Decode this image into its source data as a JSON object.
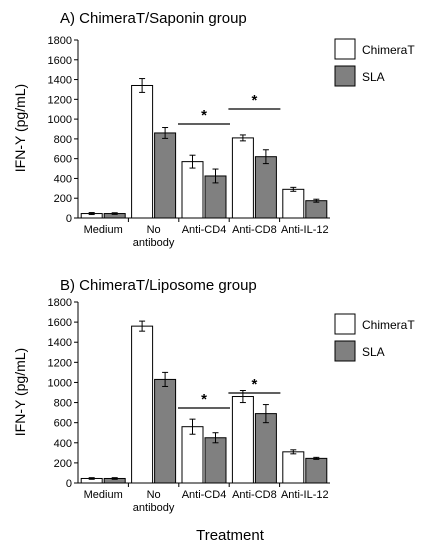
{
  "chart_data": [
    {
      "type": "bar",
      "title": "A) ChimeraT/Saponin group",
      "ylabel": "IFN-Y (pg/mL)",
      "ylim": [
        0,
        1800
      ],
      "yticks": [
        0,
        200,
        400,
        600,
        800,
        1000,
        1200,
        1400,
        1600,
        1800
      ],
      "categories": [
        "Medium",
        "No antibody",
        "Anti-CD4",
        "Anti-CD8",
        "Anti-IL-12"
      ],
      "series": [
        {
          "name": "ChimeraT",
          "color": "#ffffff",
          "values": [
            45,
            1340,
            570,
            810,
            290
          ],
          "errors": [
            10,
            70,
            65,
            30,
            20
          ]
        },
        {
          "name": "SLA",
          "color": "#808080",
          "values": [
            45,
            860,
            425,
            620,
            175
          ],
          "errors": [
            8,
            55,
            70,
            70,
            15
          ]
        }
      ],
      "significance": [
        {
          "category": "Anti-CD4",
          "label": "*"
        },
        {
          "category": "Anti-CD8",
          "label": "*"
        }
      ],
      "legend": "top-right",
      "grid": false
    },
    {
      "type": "bar",
      "title": "B) ChimeraT/Liposome group",
      "ylabel": "IFN-Y (pg/mL)",
      "xlabel": "Treatment",
      "ylim": [
        0,
        1800
      ],
      "yticks": [
        0,
        200,
        400,
        600,
        800,
        1000,
        1200,
        1400,
        1600,
        1800
      ],
      "categories": [
        "Medium",
        "No antibody",
        "Anti-CD4",
        "Anti-CD8",
        "Anti-IL-12"
      ],
      "series": [
        {
          "name": "ChimeraT",
          "color": "#ffffff",
          "values": [
            45,
            1560,
            560,
            860,
            310
          ],
          "errors": [
            8,
            50,
            75,
            60,
            20
          ]
        },
        {
          "name": "SLA",
          "color": "#808080",
          "values": [
            45,
            1030,
            450,
            690,
            245
          ],
          "errors": [
            8,
            70,
            50,
            90,
            10
          ]
        }
      ],
      "significance": [
        {
          "category": "Anti-CD4",
          "label": "*"
        },
        {
          "category": "Anti-CD8",
          "label": "*"
        }
      ],
      "legend": "top-right",
      "grid": false
    }
  ]
}
